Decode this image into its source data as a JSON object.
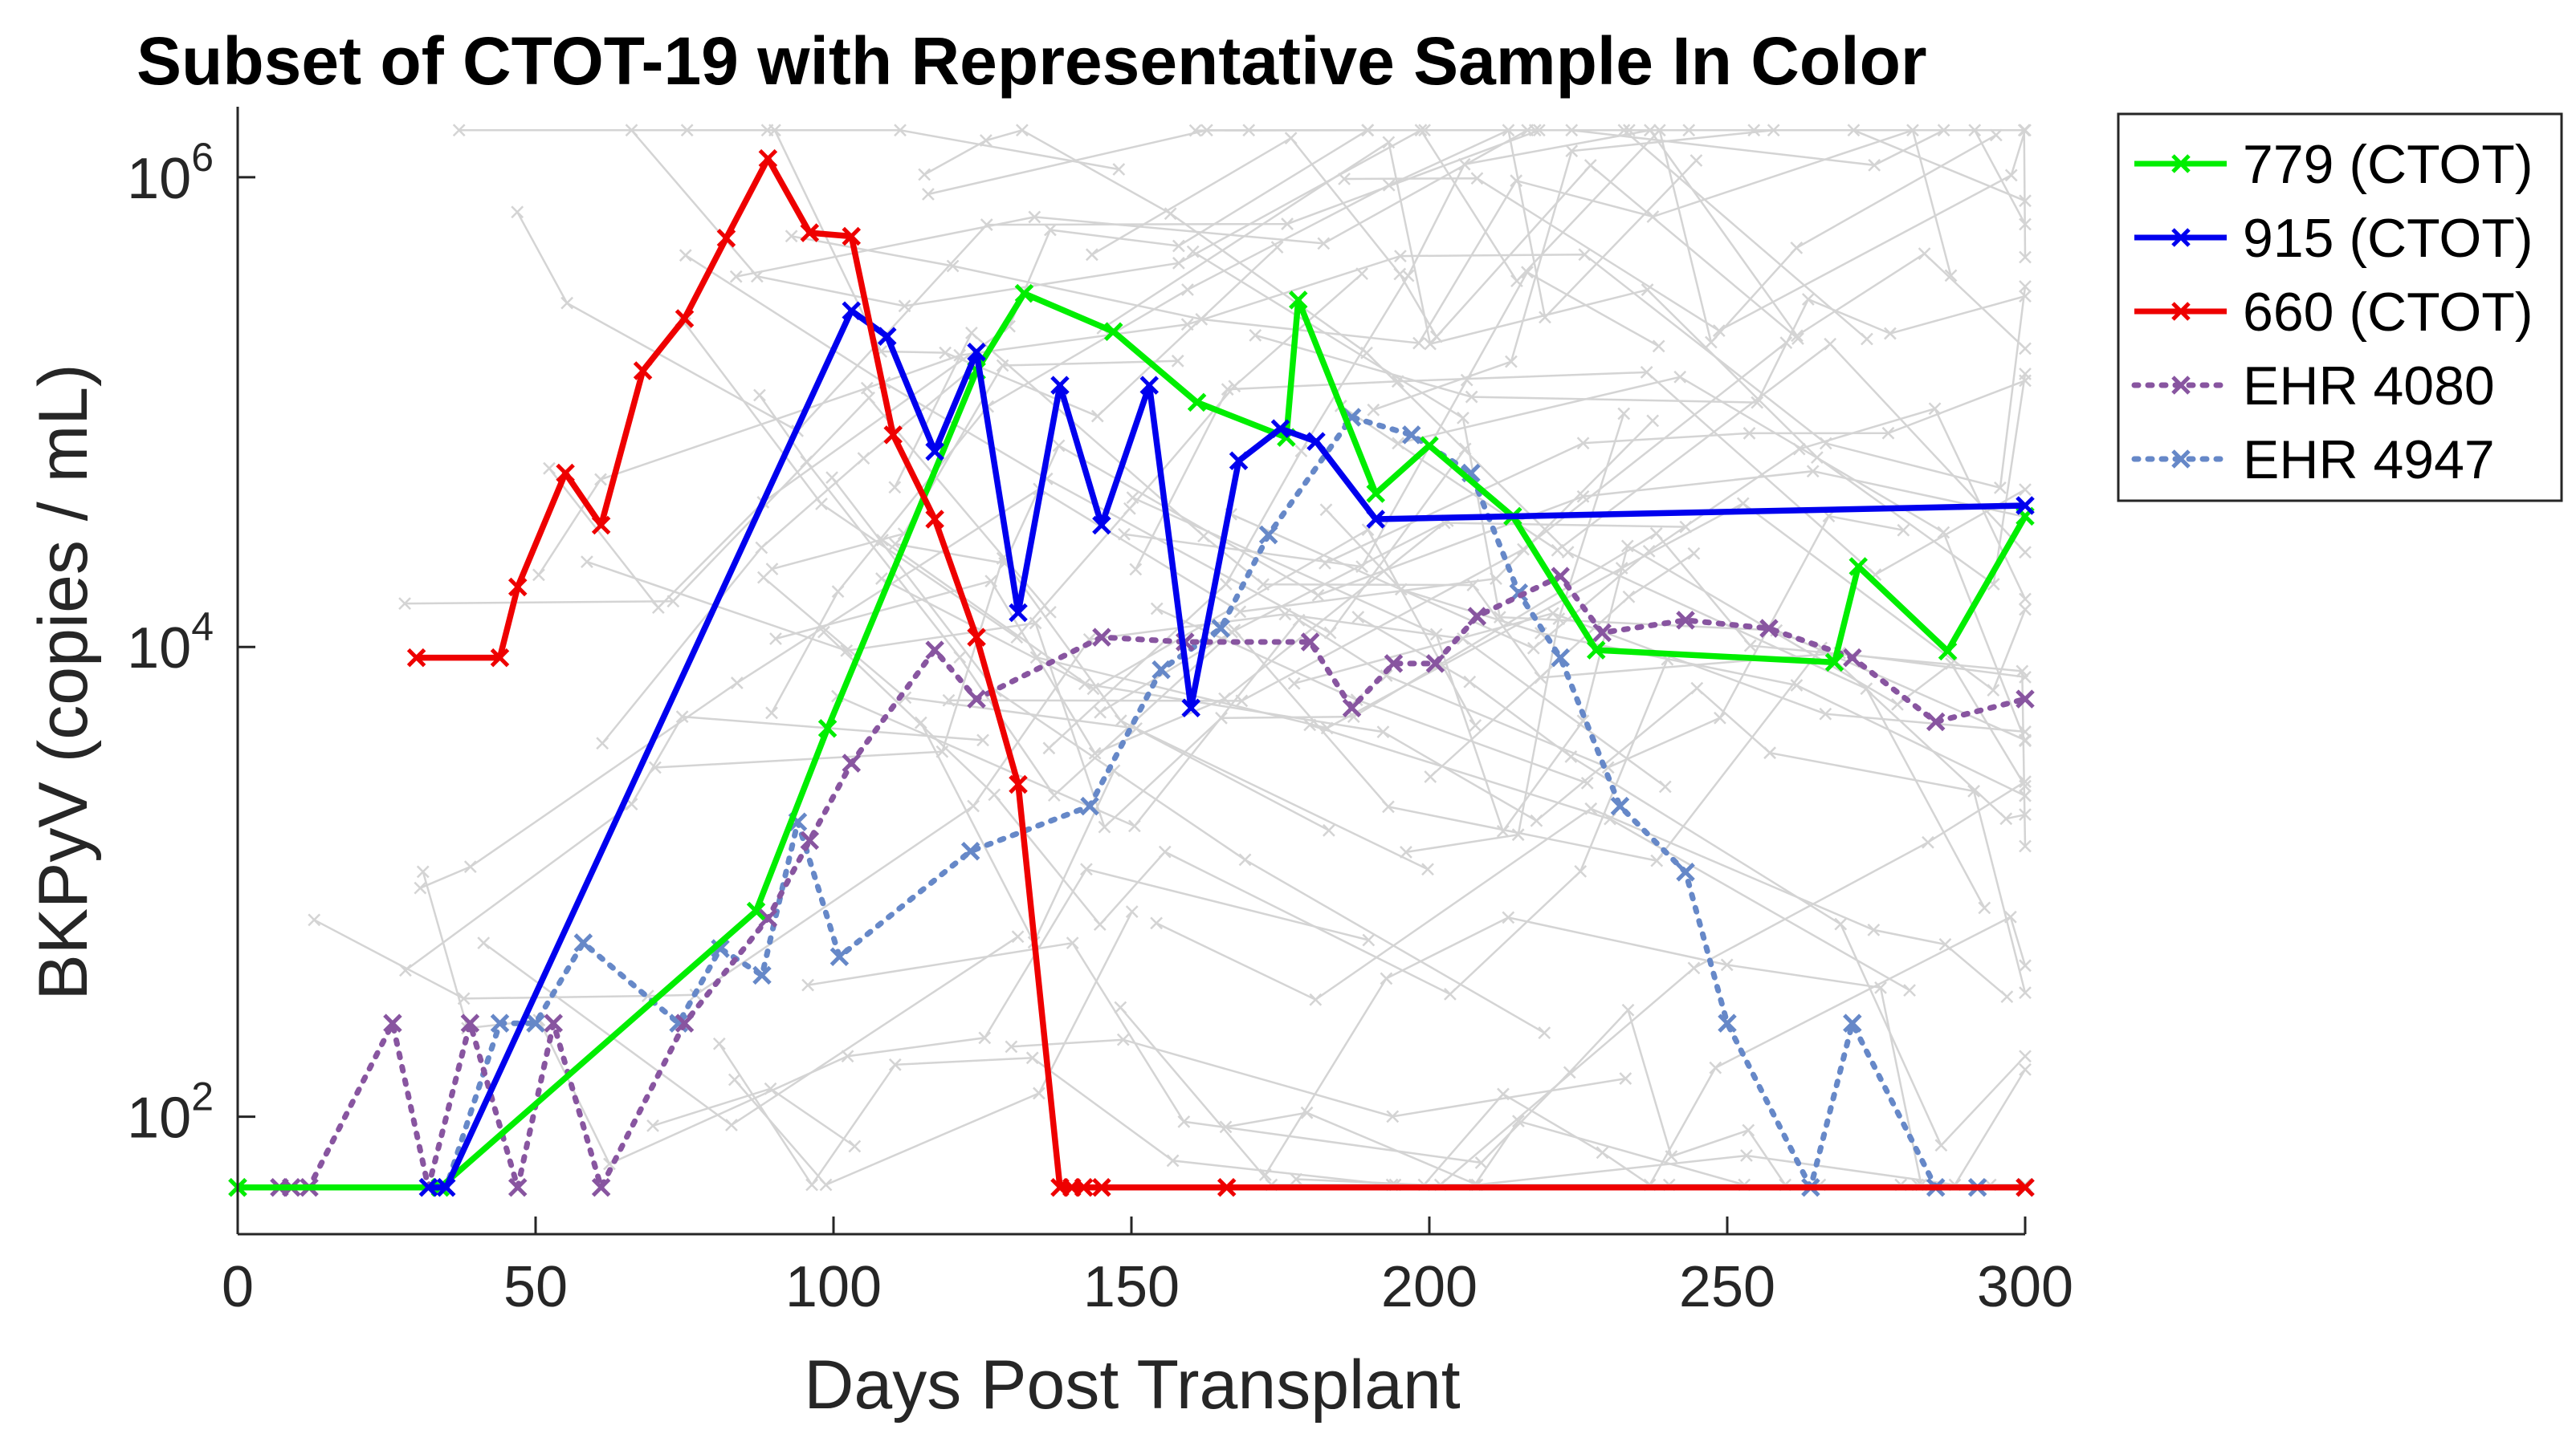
{
  "chart_data": {
    "type": "line",
    "title": "Subset of CTOT-19 with Representative Sample In Color",
    "xlabel": "Days Post Transplant",
    "ylabel": "BKPyV (copies / mL)",
    "xlim": [
      0,
      300
    ],
    "ylim_log10": [
      1.5,
      6.3
    ],
    "yscale": "log",
    "x_ticks": [
      0,
      50,
      100,
      150,
      200,
      250,
      300
    ],
    "y_ticks": [
      {
        "base": "10",
        "exp": "2",
        "value": 100
      },
      {
        "base": "10",
        "exp": "4",
        "value": 10000
      },
      {
        "base": "10",
        "exp": "6",
        "value": 1000000
      }
    ],
    "grid": false,
    "legend_position": "outside-top-right",
    "series": [
      {
        "name": "779 (CTOT)",
        "color": "#00ee00",
        "style": "solid",
        "points": [
          [
            0,
            50
          ],
          [
            34,
            50
          ],
          [
            87,
            750
          ],
          [
            99,
            4500
          ],
          [
            124,
            150000
          ],
          [
            132,
            320000
          ],
          [
            147,
            220000
          ],
          [
            161,
            110000
          ],
          [
            176,
            78000
          ],
          [
            178,
            300000
          ],
          [
            191,
            45000
          ],
          [
            200,
            72000
          ],
          [
            214,
            36000
          ],
          [
            228,
            9700
          ],
          [
            268,
            8600
          ],
          [
            272,
            22000
          ],
          [
            287,
            9600
          ],
          [
            300,
            36000
          ]
        ]
      },
      {
        "name": "915 (CTOT)",
        "color": "#0000ee",
        "style": "solid",
        "points": [
          [
            32,
            50
          ],
          [
            35,
            50
          ],
          [
            103,
            270000
          ],
          [
            109,
            210000
          ],
          [
            117,
            68000
          ],
          [
            124,
            180000
          ],
          [
            131,
            14000
          ],
          [
            138,
            130000
          ],
          [
            145,
            33000
          ],
          [
            153,
            130000
          ],
          [
            160,
            5500
          ],
          [
            168,
            62000
          ],
          [
            175,
            85000
          ],
          [
            181,
            75000
          ],
          [
            191,
            35000
          ],
          [
            300,
            40000
          ]
        ]
      },
      {
        "name": "660 (CTOT)",
        "color": "#ee0000",
        "style": "solid",
        "points": [
          [
            30,
            9000
          ],
          [
            44,
            9000
          ],
          [
            47,
            18000
          ],
          [
            55,
            55000
          ],
          [
            61,
            33000
          ],
          [
            68,
            150000
          ],
          [
            75,
            250000
          ],
          [
            82,
            550000
          ],
          [
            89,
            1200000
          ],
          [
            96,
            580000
          ],
          [
            103,
            560000
          ],
          [
            110,
            80000
          ],
          [
            117,
            35000
          ],
          [
            124,
            11000
          ],
          [
            131,
            2600
          ],
          [
            138,
            50
          ],
          [
            140,
            50
          ],
          [
            142,
            50
          ],
          [
            145,
            50
          ],
          [
            166,
            50
          ],
          [
            300,
            50
          ]
        ]
      },
      {
        "name": "EHR 4080",
        "color": "#8855a0",
        "style": "dotted",
        "points": [
          [
            0,
            50
          ],
          [
            7,
            50
          ],
          [
            9,
            50
          ],
          [
            12,
            50
          ],
          [
            26,
            250
          ],
          [
            32,
            50
          ],
          [
            39,
            250
          ],
          [
            47,
            50
          ],
          [
            53,
            250
          ],
          [
            61,
            50
          ],
          [
            75,
            250
          ],
          [
            89,
            700
          ],
          [
            96,
            1500
          ],
          [
            103,
            3200
          ],
          [
            117,
            9700
          ],
          [
            124,
            6000
          ],
          [
            145,
            11000
          ],
          [
            159,
            10500
          ],
          [
            180,
            10500
          ],
          [
            187,
            5500
          ],
          [
            194,
            8500
          ],
          [
            201,
            8500
          ],
          [
            208,
            13500
          ],
          [
            222,
            20000
          ],
          [
            229,
            11500
          ],
          [
            243,
            13000
          ],
          [
            257,
            12000
          ],
          [
            271,
            9000
          ],
          [
            285,
            4800
          ],
          [
            300,
            6000
          ]
        ]
      },
      {
        "name": "EHR 4947",
        "color": "#6688c8",
        "style": "dotted",
        "points": [
          [
            32,
            50
          ],
          [
            35,
            50
          ],
          [
            44,
            250
          ],
          [
            50,
            250
          ],
          [
            58,
            550
          ],
          [
            74,
            250
          ],
          [
            81,
            520
          ],
          [
            88,
            400
          ],
          [
            94,
            1800
          ],
          [
            101,
            480
          ],
          [
            123,
            1350
          ],
          [
            143,
            2100
          ],
          [
            155,
            8000
          ],
          [
            165,
            12000
          ],
          [
            173,
            30000
          ],
          [
            187,
            95000
          ],
          [
            197,
            80000
          ],
          [
            207,
            55000
          ],
          [
            215,
            17000
          ],
          [
            222,
            9000
          ],
          [
            232,
            2100
          ],
          [
            243,
            1100
          ],
          [
            250,
            250
          ],
          [
            264,
            50
          ],
          [
            271,
            250
          ],
          [
            285,
            50
          ],
          [
            292,
            50
          ],
          [
            300,
            50
          ]
        ]
      }
    ]
  }
}
